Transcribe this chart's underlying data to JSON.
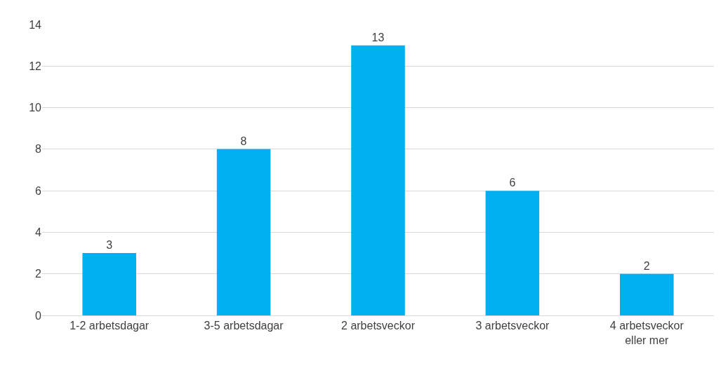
{
  "chart_data": {
    "type": "bar",
    "categories": [
      "1-2 arbetsdagar",
      "3-5 arbetsdagar",
      "2 arbetsveckor",
      "3 arbetsveckor",
      "4 arbetsveckor eller mer"
    ],
    "values": [
      3,
      8,
      13,
      6,
      2
    ],
    "color": "#00b0f0",
    "ylim": [
      0,
      14
    ],
    "yticks": [
      0,
      2,
      4,
      6,
      8,
      10,
      12,
      14
    ],
    "grid": "y",
    "data_labels": true
  }
}
